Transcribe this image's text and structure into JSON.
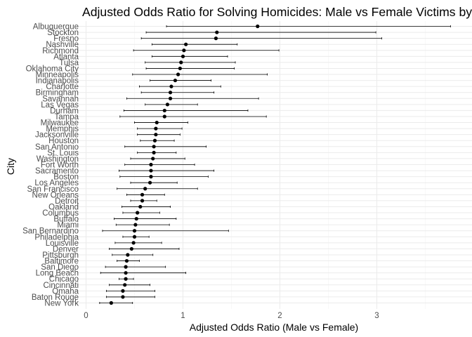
{
  "chart_data": {
    "type": "scatter",
    "title": "Adjusted Odds Ratio for Solving Homicides: Male vs Female Victims by City",
    "xlabel": "Adjusted Odds Ratio (Male vs Female)",
    "ylabel": "City",
    "xlim": [
      -0.05,
      3.9
    ],
    "xticks": [
      0,
      1,
      2,
      3
    ],
    "xtick_labels": [
      "0",
      "1",
      "2",
      "3"
    ],
    "grid": true,
    "categories": [
      "Albuquerque",
      "Stockton",
      "Fresno",
      "Nashville",
      "Richmond",
      "Atlanta",
      "Tulsa",
      "Oklahoma City",
      "Minneapolis",
      "Indianapolis",
      "Charlotte",
      "Birmingham",
      "Savannah",
      "Las Vegas",
      "Durham",
      "Tampa",
      "Milwaukee",
      "Memphis",
      "Jacksonville",
      "Houston",
      "San Antonio",
      "St. Louis",
      "Washington",
      "Fort Worth",
      "Sacramento",
      "Boston",
      "Los Angeles",
      "San Francisco",
      "New Orleans",
      "Detroit",
      "Oakland",
      "Columbus",
      "Buffalo",
      "Miami",
      "San Bernardino",
      "Philadelphia",
      "Louisville",
      "Denver",
      "Pittsburgh",
      "Baltimore",
      "San Diego",
      "Long Beach",
      "Chicago",
      "Cincinnati",
      "Omaha",
      "Baton Rouge",
      "New York"
    ],
    "series": [
      {
        "estimate": [
          1.77,
          1.35,
          1.34,
          1.03,
          1.01,
          1.0,
          0.98,
          0.97,
          0.95,
          0.92,
          0.88,
          0.87,
          0.87,
          0.84,
          0.81,
          0.81,
          0.73,
          0.72,
          0.72,
          0.71,
          0.7,
          0.7,
          0.69,
          0.67,
          0.67,
          0.67,
          0.66,
          0.61,
          0.58,
          0.58,
          0.56,
          0.53,
          0.52,
          0.51,
          0.5,
          0.5,
          0.49,
          0.47,
          0.43,
          0.42,
          0.41,
          0.41,
          0.41,
          0.4,
          0.38,
          0.38,
          0.26
        ],
        "conf_low": [
          0.83,
          0.62,
          0.57,
          0.68,
          0.49,
          0.68,
          0.61,
          0.62,
          0.48,
          0.66,
          0.55,
          0.57,
          0.42,
          0.61,
          0.39,
          0.35,
          0.5,
          0.53,
          0.53,
          0.56,
          0.4,
          0.53,
          0.46,
          0.4,
          0.34,
          0.35,
          0.46,
          0.32,
          0.42,
          0.46,
          0.37,
          0.38,
          0.29,
          0.31,
          0.17,
          0.38,
          0.3,
          0.24,
          0.27,
          0.32,
          0.2,
          0.15,
          0.34,
          0.24,
          0.21,
          0.21,
          0.14
        ],
        "conf_high": [
          3.76,
          2.99,
          3.05,
          1.56,
          1.99,
          1.46,
          1.54,
          1.53,
          1.87,
          1.29,
          1.39,
          1.32,
          1.78,
          1.15,
          1.67,
          1.86,
          1.05,
          0.99,
          0.97,
          0.91,
          1.24,
          0.93,
          1.02,
          1.12,
          1.32,
          1.26,
          0.94,
          1.15,
          0.81,
          0.73,
          0.87,
          0.76,
          0.93,
          0.86,
          1.47,
          0.65,
          0.78,
          0.96,
          0.69,
          0.55,
          0.82,
          1.03,
          0.49,
          0.66,
          0.71,
          0.71,
          0.48
        ]
      }
    ]
  }
}
